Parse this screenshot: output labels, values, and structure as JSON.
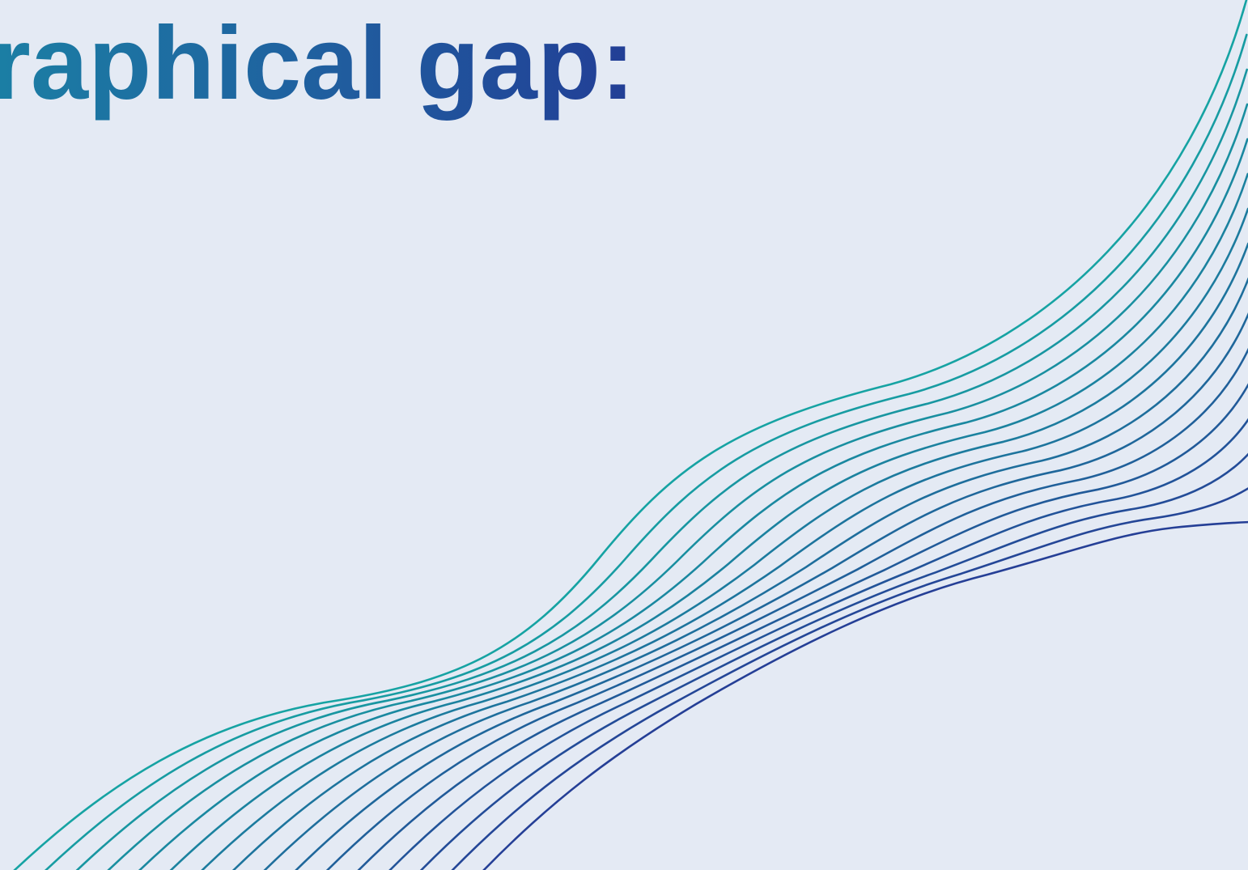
{
  "slide": {
    "heading": "raphical gap:"
  },
  "decoration": {
    "icon": "wave-lines-graphic",
    "line_count": 16,
    "color_start": "#16a3a3",
    "color_end": "#253f96",
    "background": "#e4eaf4",
    "heading_color": "#1f5a9e"
  }
}
